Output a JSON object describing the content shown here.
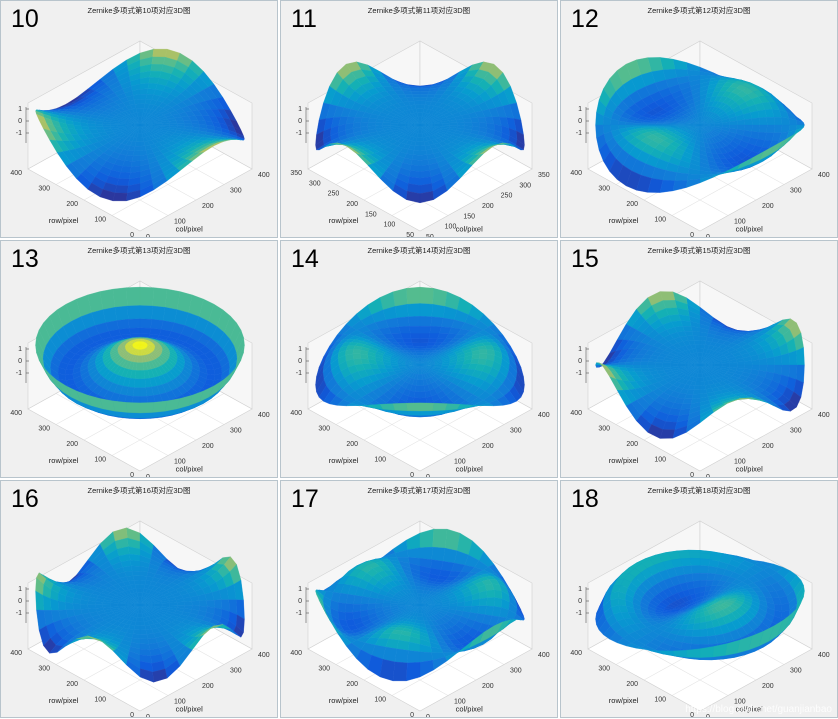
{
  "figure": {
    "watermark": "https://blog.csdn.net/guanjianbao"
  },
  "chart_data": [
    {
      "type": "surface3d",
      "panel_number": "10",
      "title": "Zernike多项式第10项对应3D图",
      "zticks": [
        "1",
        "0",
        "-1"
      ],
      "row_ticks": [
        "400",
        "300",
        "200",
        "100",
        "0"
      ],
      "col_ticks": [
        "0",
        "100",
        "200",
        "300",
        "400"
      ],
      "xlabel": "col/pixel",
      "ylabel": "row/pixel",
      "colors": [
        "#2a2a8c",
        "#1f77b4",
        "#20b2aa",
        "#f5d327"
      ]
    },
    {
      "type": "surface3d",
      "panel_number": "11",
      "title": "Zernike多项式第11项对应3D图",
      "zticks": [
        "1",
        "0",
        "-1"
      ],
      "row_ticks": [
        "350",
        "300",
        "250",
        "200",
        "150",
        "100",
        "50"
      ],
      "col_ticks": [
        "50",
        "100",
        "150",
        "200",
        "250",
        "300",
        "350"
      ],
      "xlabel": "col/pixel",
      "ylabel": "row/pixel",
      "colors": [
        "#2a2a8c",
        "#1f77b4",
        "#20b2aa",
        "#f5d327"
      ]
    },
    {
      "type": "surface3d",
      "panel_number": "12",
      "title": "Zernike多项式第12项对应3D图",
      "zticks": [
        "1",
        "0",
        "-1"
      ],
      "row_ticks": [
        "400",
        "300",
        "200",
        "100",
        "0"
      ],
      "col_ticks": [
        "0",
        "100",
        "200",
        "300",
        "400"
      ],
      "xlabel": "col/pixel",
      "ylabel": "row/pixel",
      "colors": [
        "#2a2a8c",
        "#1f77b4",
        "#20b2aa",
        "#f5d327"
      ]
    },
    {
      "type": "surface3d",
      "panel_number": "13",
      "title": "Zernike多项式第13项对应3D图",
      "zticks": [
        "1",
        "0",
        "-1"
      ],
      "row_ticks": [
        "400",
        "300",
        "200",
        "100",
        "0"
      ],
      "col_ticks": [
        "0",
        "100",
        "200",
        "300",
        "400"
      ],
      "xlabel": "col/pixel",
      "ylabel": "row/pixel",
      "colors": [
        "#2a2a8c",
        "#1f77b4",
        "#20b2aa",
        "#f5d327"
      ]
    },
    {
      "type": "surface3d",
      "panel_number": "14",
      "title": "Zernike多项式第14项对应3D图",
      "zticks": [
        "1",
        "0",
        "-1"
      ],
      "row_ticks": [
        "400",
        "300",
        "200",
        "100",
        "0"
      ],
      "col_ticks": [
        "0",
        "100",
        "200",
        "300",
        "400"
      ],
      "xlabel": "col/pixel",
      "ylabel": "row/pixel",
      "colors": [
        "#2a2a8c",
        "#1f77b4",
        "#20b2aa",
        "#f5d327"
      ]
    },
    {
      "type": "surface3d",
      "panel_number": "15",
      "title": "Zernike多项式第15项对应3D图",
      "zticks": [
        "1",
        "0",
        "-1"
      ],
      "row_ticks": [
        "400",
        "300",
        "200",
        "100",
        "0"
      ],
      "col_ticks": [
        "0",
        "100",
        "200",
        "300",
        "400"
      ],
      "xlabel": "col/pixel",
      "ylabel": "row/pixel",
      "colors": [
        "#2a2a8c",
        "#1f77b4",
        "#20b2aa",
        "#f5d327"
      ]
    },
    {
      "type": "surface3d",
      "panel_number": "16",
      "title": "Zernike多项式第16项对应3D图",
      "zticks": [
        "1",
        "0",
        "-1"
      ],
      "row_ticks": [
        "400",
        "300",
        "200",
        "100",
        "0"
      ],
      "col_ticks": [
        "0",
        "100",
        "200",
        "300",
        "400"
      ],
      "xlabel": "col/pixel",
      "ylabel": "row/pixel",
      "colors": [
        "#2a2a8c",
        "#1f77b4",
        "#20b2aa",
        "#f5d327"
      ]
    },
    {
      "type": "surface3d",
      "panel_number": "17",
      "title": "Zernike多项式第17项对应3D图",
      "zticks": [
        "1",
        "0",
        "-1"
      ],
      "row_ticks": [
        "400",
        "300",
        "200",
        "100",
        "0"
      ],
      "col_ticks": [
        "0",
        "100",
        "200",
        "300",
        "400"
      ],
      "xlabel": "col/pixel",
      "ylabel": "row/pixel",
      "colors": [
        "#2a2a8c",
        "#1f77b4",
        "#20b2aa",
        "#f5d327"
      ]
    },
    {
      "type": "surface3d",
      "panel_number": "18",
      "title": "Zernike多项式第18项对应3D图",
      "zticks": [
        "1",
        "0",
        "-1"
      ],
      "row_ticks": [
        "400",
        "300",
        "200",
        "100",
        "0"
      ],
      "col_ticks": [
        "0",
        "100",
        "200",
        "300",
        "400"
      ],
      "xlabel": "col/pixel",
      "ylabel": "row/pixel",
      "colors": [
        "#2a2a8c",
        "#1f77b4",
        "#20b2aa",
        "#f5d327"
      ]
    }
  ]
}
